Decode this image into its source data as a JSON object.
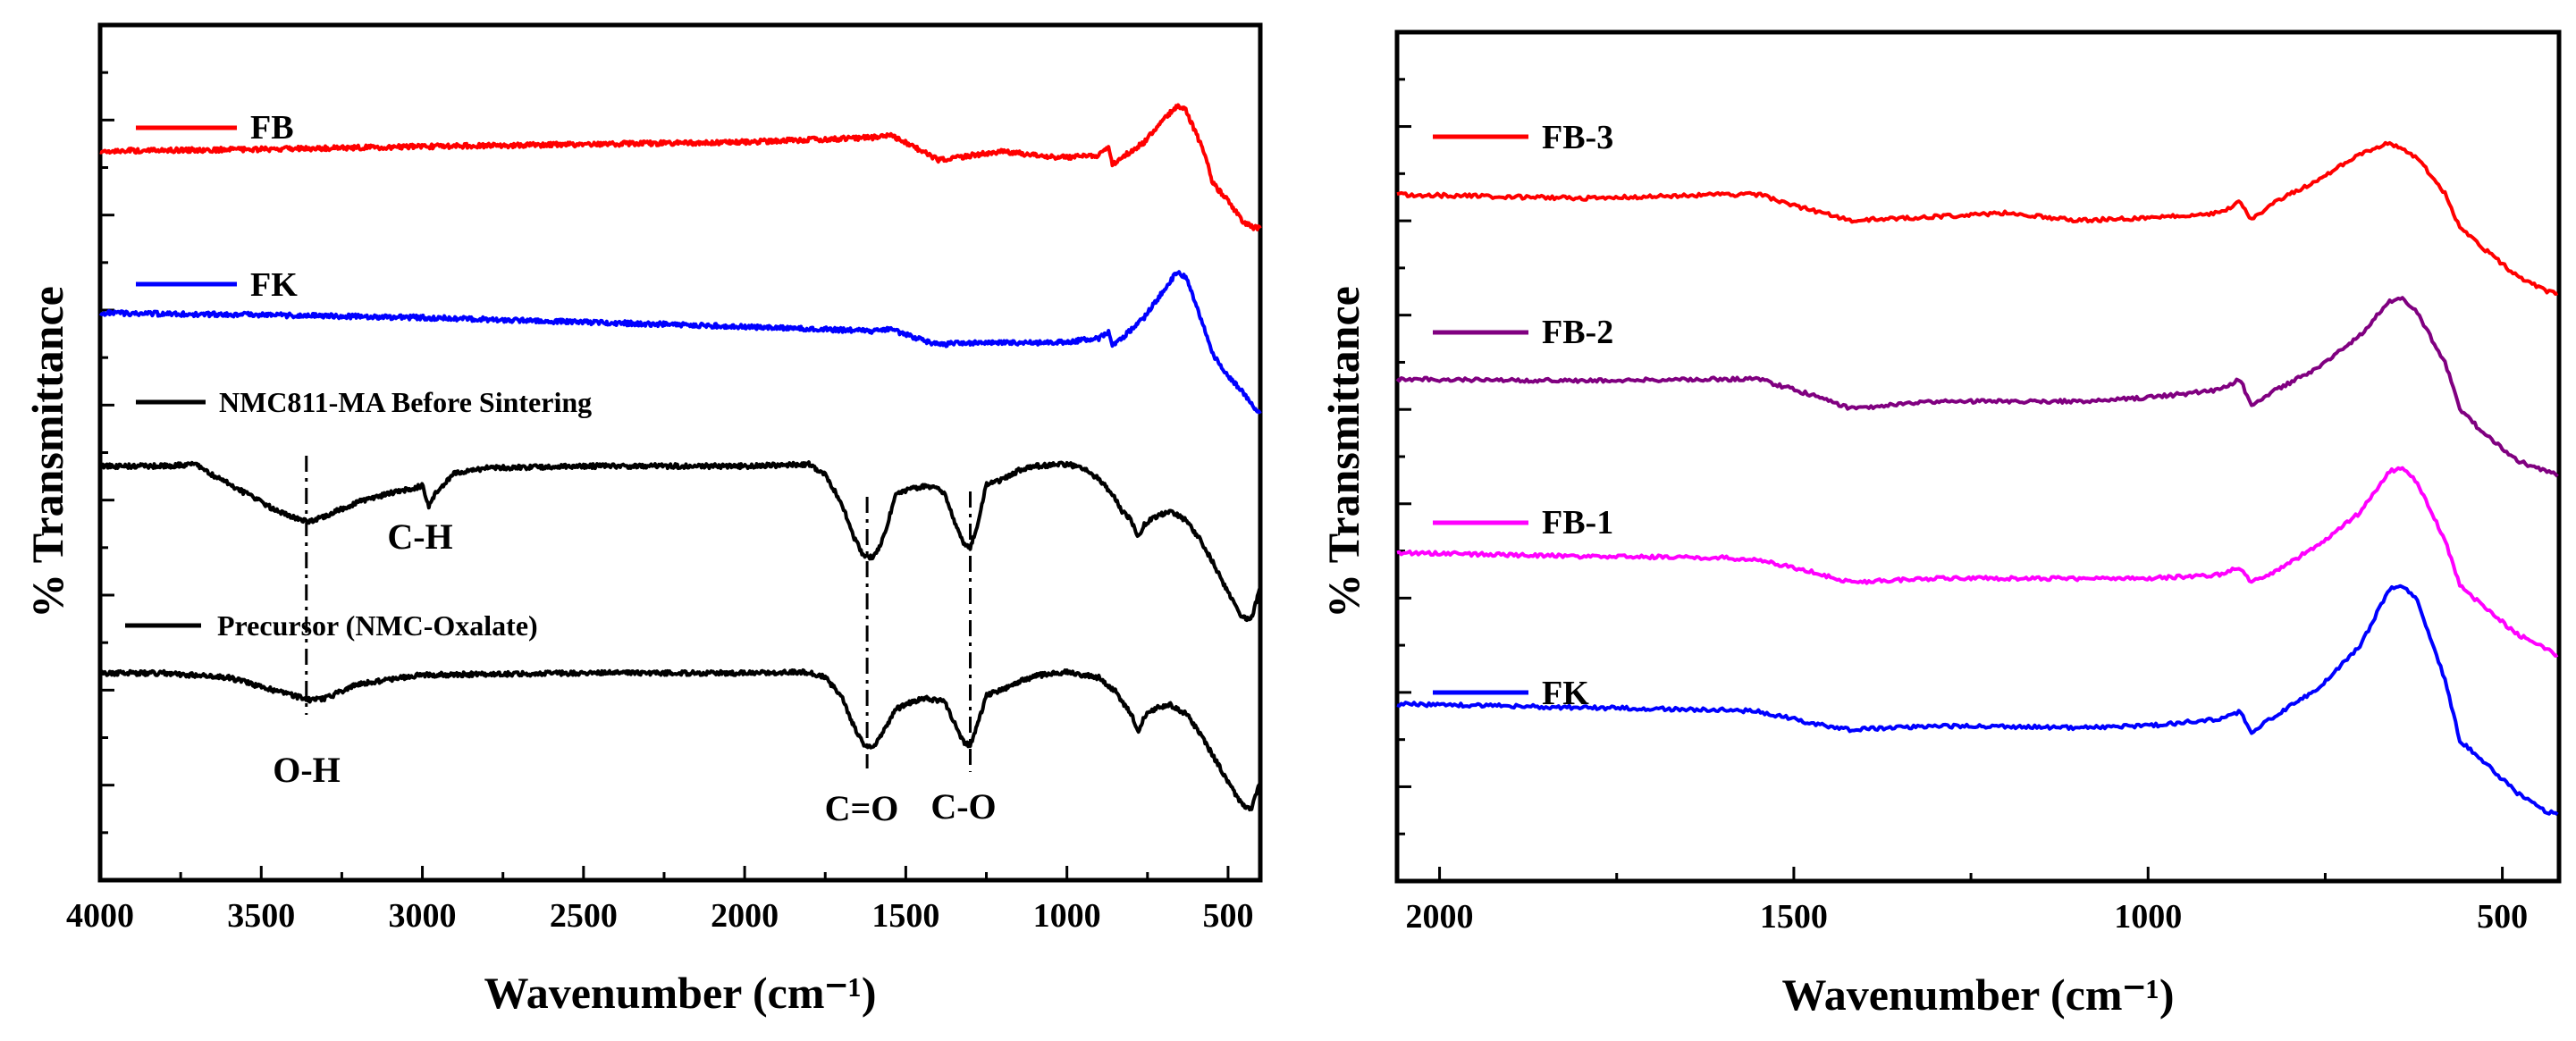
{
  "chart_data": [
    {
      "type": "line",
      "panel": "left",
      "xlabel": "Wavenumber (cm⁻¹)",
      "ylabel": "% Transmittance",
      "xlim": [
        4000,
        400
      ],
      "x_reversed": true,
      "xticks": [
        4000,
        3500,
        3000,
        2500,
        2000,
        1500,
        1000,
        500
      ],
      "y_tick_labels": false,
      "series": [
        {
          "name": "FB",
          "color": "#ff0000",
          "points": [
            [
              4000,
              8.1
            ],
            [
              3500,
              8.12
            ],
            [
              3000,
              8.15
            ],
            [
              2000,
              8.2
            ],
            [
              1600,
              8.25
            ],
            [
              1550,
              8.28
            ],
            [
              1450,
              8.1
            ],
            [
              1400,
              8.0
            ],
            [
              1300,
              8.05
            ],
            [
              1200,
              8.1
            ],
            [
              1100,
              8.05
            ],
            [
              1000,
              8.03
            ],
            [
              900,
              8.05
            ],
            [
              870,
              8.15
            ],
            [
              860,
              7.95
            ],
            [
              820,
              8.05
            ],
            [
              760,
              8.2
            ],
            [
              700,
              8.45
            ],
            [
              660,
              8.6
            ],
            [
              630,
              8.55
            ],
            [
              600,
              8.3
            ],
            [
              570,
              8.05
            ],
            [
              550,
              7.75
            ],
            [
              500,
              7.55
            ],
            [
              450,
              7.3
            ],
            [
              420,
              7.25
            ],
            [
              400,
              7.25
            ]
          ]
        },
        {
          "name": "FK",
          "color": "#0000ff",
          "points": [
            [
              4000,
              6.3
            ],
            [
              3500,
              6.28
            ],
            [
              3000,
              6.25
            ],
            [
              2000,
              6.15
            ],
            [
              1600,
              6.1
            ],
            [
              1550,
              6.12
            ],
            [
              1450,
              6.0
            ],
            [
              1400,
              5.95
            ],
            [
              1300,
              5.97
            ],
            [
              1100,
              5.97
            ],
            [
              1000,
              5.98
            ],
            [
              900,
              6.02
            ],
            [
              870,
              6.1
            ],
            [
              860,
              5.93
            ],
            [
              820,
              6.05
            ],
            [
              760,
              6.25
            ],
            [
              700,
              6.55
            ],
            [
              660,
              6.75
            ],
            [
              630,
              6.7
            ],
            [
              600,
              6.4
            ],
            [
              570,
              6.1
            ],
            [
              550,
              5.85
            ],
            [
              500,
              5.6
            ],
            [
              450,
              5.4
            ],
            [
              420,
              5.25
            ],
            [
              400,
              5.2
            ]
          ]
        },
        {
          "name": "NMC811-MA Before Sintering",
          "color": "#000000",
          "points": [
            [
              4000,
              4.6
            ],
            [
              3800,
              4.6
            ],
            [
              3700,
              4.62
            ],
            [
              3650,
              4.5
            ],
            [
              3550,
              4.3
            ],
            [
              3450,
              4.1
            ],
            [
              3380,
              4.0
            ],
            [
              3350,
              3.98
            ],
            [
              3300,
              4.05
            ],
            [
              3200,
              4.2
            ],
            [
              3100,
              4.3
            ],
            [
              3000,
              4.38
            ],
            [
              2980,
              4.15
            ],
            [
              2960,
              4.3
            ],
            [
              2900,
              4.52
            ],
            [
              2800,
              4.58
            ],
            [
              2500,
              4.6
            ],
            [
              2000,
              4.6
            ],
            [
              1800,
              4.62
            ],
            [
              1750,
              4.5
            ],
            [
              1700,
              4.2
            ],
            [
              1660,
              3.8
            ],
            [
              1630,
              3.6
            ],
            [
              1600,
              3.58
            ],
            [
              1570,
              3.8
            ],
            [
              1530,
              4.3
            ],
            [
              1480,
              4.35
            ],
            [
              1440,
              4.38
            ],
            [
              1400,
              4.35
            ],
            [
              1380,
              4.3
            ],
            [
              1350,
              4.0
            ],
            [
              1320,
              3.72
            ],
            [
              1300,
              3.7
            ],
            [
              1280,
              3.9
            ],
            [
              1250,
              4.4
            ],
            [
              1200,
              4.45
            ],
            [
              1150,
              4.55
            ],
            [
              1100,
              4.6
            ],
            [
              1000,
              4.62
            ],
            [
              950,
              4.58
            ],
            [
              900,
              4.45
            ],
            [
              860,
              4.3
            ],
            [
              830,
              4.1
            ],
            [
              800,
              4.0
            ],
            [
              780,
              3.8
            ],
            [
              760,
              3.95
            ],
            [
              720,
              4.05
            ],
            [
              680,
              4.1
            ],
            [
              630,
              4.0
            ],
            [
              590,
              3.8
            ],
            [
              550,
              3.55
            ],
            [
              500,
              3.2
            ],
            [
              460,
              2.95
            ],
            [
              430,
              2.88
            ],
            [
              400,
              3.25
            ]
          ]
        },
        {
          "name": "Precursor (NMC-Oxalate)",
          "color": "#000000",
          "points": [
            [
              4000,
              2.3
            ],
            [
              3800,
              2.3
            ],
            [
              3600,
              2.25
            ],
            [
              3500,
              2.15
            ],
            [
              3400,
              2.05
            ],
            [
              3350,
              2.0
            ],
            [
              3300,
              2.02
            ],
            [
              3200,
              2.18
            ],
            [
              3000,
              2.28
            ],
            [
              2500,
              2.3
            ],
            [
              2000,
              2.3
            ],
            [
              1800,
              2.31
            ],
            [
              1750,
              2.25
            ],
            [
              1700,
              2.05
            ],
            [
              1660,
              1.7
            ],
            [
              1630,
              1.5
            ],
            [
              1600,
              1.48
            ],
            [
              1570,
              1.65
            ],
            [
              1530,
              1.9
            ],
            [
              1480,
              1.98
            ],
            [
              1440,
              2.02
            ],
            [
              1400,
              2.0
            ],
            [
              1380,
              1.98
            ],
            [
              1350,
              1.75
            ],
            [
              1320,
              1.53
            ],
            [
              1300,
              1.5
            ],
            [
              1280,
              1.7
            ],
            [
              1250,
              2.05
            ],
            [
              1200,
              2.12
            ],
            [
              1150,
              2.2
            ],
            [
              1100,
              2.27
            ],
            [
              1000,
              2.31
            ],
            [
              900,
              2.25
            ],
            [
              850,
              2.1
            ],
            [
              830,
              1.98
            ],
            [
              800,
              1.85
            ],
            [
              780,
              1.65
            ],
            [
              760,
              1.82
            ],
            [
              720,
              1.92
            ],
            [
              680,
              1.95
            ],
            [
              630,
              1.85
            ],
            [
              590,
              1.65
            ],
            [
              550,
              1.4
            ],
            [
              500,
              1.1
            ],
            [
              460,
              0.85
            ],
            [
              430,
              0.78
            ],
            [
              400,
              1.1
            ]
          ]
        }
      ],
      "legend": [
        {
          "label": "FB",
          "color": "#ff0000"
        },
        {
          "label": "FK",
          "color": "#0000ff"
        },
        {
          "label": "NMC811-MA Before Sintering",
          "color": "#000000"
        },
        {
          "label": "Precursor (NMC-Oxalate)",
          "color": "#000000"
        }
      ],
      "annotations": [
        {
          "text": "C-H",
          "x": 3100
        },
        {
          "text": "O-H",
          "x": 3360
        },
        {
          "text": "C=O",
          "x": 1620
        },
        {
          "text": "C-O",
          "x": 1300
        }
      ],
      "dashed_markers": [
        3360,
        1620,
        1300
      ]
    },
    {
      "type": "line",
      "panel": "right",
      "xlabel": "Wavenumber (cm⁻¹)",
      "ylabel": "% Transmittance",
      "xlim": [
        2060,
        420
      ],
      "x_reversed": true,
      "xticks": [
        2000,
        1500,
        1000,
        500
      ],
      "y_tick_labels": false,
      "series": [
        {
          "name": "FB-3",
          "color": "#ff0000",
          "points": [
            [
              2060,
              8.3
            ],
            [
              1800,
              8.25
            ],
            [
              1600,
              8.3
            ],
            [
              1550,
              8.3
            ],
            [
              1480,
              8.1
            ],
            [
              1420,
              7.95
            ],
            [
              1300,
              8.0
            ],
            [
              1200,
              8.05
            ],
            [
              1100,
              7.95
            ],
            [
              1000,
              7.98
            ],
            [
              900,
              8.05
            ],
            [
              870,
              8.2
            ],
            [
              855,
              7.95
            ],
            [
              820,
              8.2
            ],
            [
              760,
              8.5
            ],
            [
              700,
              8.85
            ],
            [
              660,
              9.0
            ],
            [
              620,
              8.8
            ],
            [
              580,
              8.3
            ],
            [
              560,
              7.85
            ],
            [
              530,
              7.6
            ],
            [
              480,
              7.2
            ],
            [
              440,
              7.0
            ],
            [
              420,
              6.95
            ]
          ]
        },
        {
          "name": "FB-2",
          "color": "#800080",
          "points": [
            [
              2060,
              5.8
            ],
            [
              1800,
              5.78
            ],
            [
              1600,
              5.8
            ],
            [
              1550,
              5.8
            ],
            [
              1480,
              5.6
            ],
            [
              1420,
              5.4
            ],
            [
              1300,
              5.5
            ],
            [
              1100,
              5.5
            ],
            [
              1000,
              5.55
            ],
            [
              900,
              5.65
            ],
            [
              870,
              5.8
            ],
            [
              855,
              5.45
            ],
            [
              820,
              5.65
            ],
            [
              760,
              5.95
            ],
            [
              700,
              6.4
            ],
            [
              660,
              6.85
            ],
            [
              640,
              6.9
            ],
            [
              620,
              6.7
            ],
            [
              580,
              6.0
            ],
            [
              560,
              5.4
            ],
            [
              530,
              5.1
            ],
            [
              480,
              4.7
            ],
            [
              440,
              4.55
            ],
            [
              420,
              4.5
            ]
          ]
        },
        {
          "name": "FB-1",
          "color": "#ff00ff",
          "points": [
            [
              2060,
              3.45
            ],
            [
              1800,
              3.4
            ],
            [
              1600,
              3.38
            ],
            [
              1550,
              3.35
            ],
            [
              1480,
              3.2
            ],
            [
              1420,
              3.05
            ],
            [
              1300,
              3.1
            ],
            [
              1100,
              3.1
            ],
            [
              1000,
              3.1
            ],
            [
              900,
              3.15
            ],
            [
              870,
              3.25
            ],
            [
              855,
              3.05
            ],
            [
              820,
              3.2
            ],
            [
              760,
              3.55
            ],
            [
              700,
              4.0
            ],
            [
              660,
              4.55
            ],
            [
              640,
              4.6
            ],
            [
              620,
              4.4
            ],
            [
              580,
              3.6
            ],
            [
              560,
              3.0
            ],
            [
              530,
              2.75
            ],
            [
              480,
              2.35
            ],
            [
              440,
              2.15
            ],
            [
              420,
              2.05
            ]
          ]
        },
        {
          "name": "FK",
          "color": "#0000ff",
          "points": [
            [
              2060,
              1.4
            ],
            [
              1800,
              1.35
            ],
            [
              1600,
              1.32
            ],
            [
              1550,
              1.3
            ],
            [
              1480,
              1.15
            ],
            [
              1420,
              1.05
            ],
            [
              1300,
              1.1
            ],
            [
              1100,
              1.08
            ],
            [
              1000,
              1.1
            ],
            [
              900,
              1.2
            ],
            [
              870,
              1.3
            ],
            [
              855,
              1.0
            ],
            [
              820,
              1.25
            ],
            [
              760,
              1.6
            ],
            [
              700,
              2.2
            ],
            [
              660,
              2.95
            ],
            [
              640,
              3.0
            ],
            [
              620,
              2.8
            ],
            [
              580,
              1.7
            ],
            [
              560,
              0.9
            ],
            [
              530,
              0.65
            ],
            [
              480,
              0.2
            ],
            [
              440,
              -0.05
            ],
            [
              420,
              -0.1
            ]
          ]
        }
      ],
      "legend": [
        {
          "label": "FB-3",
          "color": "#ff0000"
        },
        {
          "label": "FB-2",
          "color": "#800080"
        },
        {
          "label": "FB-1",
          "color": "#ff00ff"
        },
        {
          "label": "FK",
          "color": "#0000ff"
        }
      ]
    }
  ]
}
